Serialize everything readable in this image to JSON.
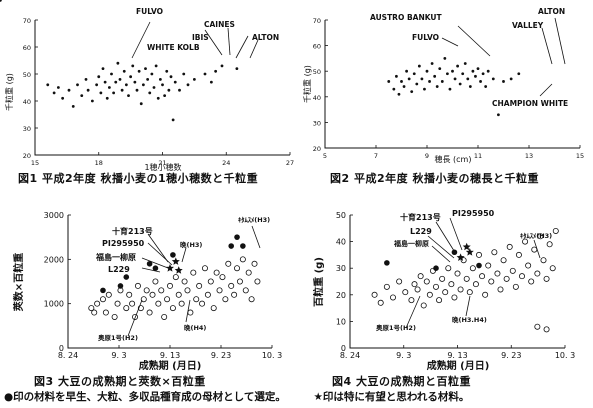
{
  "captions": {
    "fig1": "図1 平成2年度 秋播小麦の1穂小穂数と千粒重",
    "fig2": "図2 平成2年度 秋播小麦の穂長と千粒重",
    "fig3": "図3 大豆の成熟期と莢数×百粒重",
    "fig4": "図4 大豆の成熟期と百粒重",
    "footnote_part1": "●印の材料を早生、大粒、多収品種育成の母材として選定。",
    "footnote_part2": "★印は特に有望と思われる材料。"
  },
  "chart_data": [
    {
      "id": "fig1",
      "type": "scatter",
      "xlabel": "1穂小穂数",
      "ylabel": "千粒重 (g)",
      "xlim": [
        15,
        27
      ],
      "ylim": [
        20,
        70
      ],
      "xticks": [
        "15",
        "18",
        "21",
        "24",
        "27"
      ],
      "yticks": [
        "20",
        "30",
        "40",
        "50",
        "60",
        "70"
      ],
      "points": [
        [
          15.6,
          46
        ],
        [
          15.9,
          43
        ],
        [
          16.1,
          45
        ],
        [
          16.3,
          41
        ],
        [
          16.6,
          44
        ],
        [
          16.8,
          38
        ],
        [
          17,
          46
        ],
        [
          17.2,
          42
        ],
        [
          17.4,
          48
        ],
        [
          17.5,
          44
        ],
        [
          17.7,
          40
        ],
        [
          17.9,
          46
        ],
        [
          18,
          49
        ],
        [
          18.1,
          43
        ],
        [
          18.2,
          52
        ],
        [
          18.3,
          47
        ],
        [
          18.4,
          41
        ],
        [
          18.5,
          45
        ],
        [
          18.6,
          50
        ],
        [
          18.7,
          43
        ],
        [
          18.8,
          47
        ],
        [
          18.9,
          54
        ],
        [
          19,
          48
        ],
        [
          19.1,
          44
        ],
        [
          19.2,
          51
        ],
        [
          19.3,
          46
        ],
        [
          19.4,
          42
        ],
        [
          19.5,
          49
        ],
        [
          19.6,
          53
        ],
        [
          19.7,
          47
        ],
        [
          19.8,
          44
        ],
        [
          19.9,
          51
        ],
        [
          20,
          39
        ],
        [
          20.1,
          46
        ],
        [
          20.2,
          52
        ],
        [
          20.3,
          48
        ],
        [
          20.4,
          43
        ],
        [
          20.5,
          50
        ],
        [
          20.6,
          45
        ],
        [
          20.7,
          53
        ],
        [
          20.8,
          41
        ],
        [
          20.9,
          48
        ],
        [
          21,
          46
        ],
        [
          21.1,
          42
        ],
        [
          21.2,
          51
        ],
        [
          21.3,
          44
        ],
        [
          21.4,
          49
        ],
        [
          21.5,
          33
        ],
        [
          21.6,
          47
        ],
        [
          21.8,
          44
        ],
        [
          22,
          50
        ],
        [
          22.2,
          46
        ],
        [
          22.5,
          48
        ],
        [
          23,
          50
        ],
        [
          23.3,
          47
        ],
        [
          23.5,
          51
        ],
        [
          23.8,
          53
        ],
        [
          24.5,
          52
        ]
      ],
      "labeled_points": [
        {
          "label": "FULVO",
          "x": 20.1,
          "y": 61
        },
        {
          "label": "WHITE KOLB",
          "x": 22.6,
          "y": 49
        },
        {
          "label": "IBIS",
          "x": 23.7,
          "y": 55
        },
        {
          "label": "CAINES",
          "x": 24.2,
          "y": 53
        },
        {
          "label": "ALTON",
          "x": 25.2,
          "y": 53
        }
      ]
    },
    {
      "id": "fig2",
      "type": "scatter",
      "xlabel": "穂長 (cm)",
      "ylabel": "千粒重 (g)",
      "xlim": [
        5,
        15
      ],
      "ylim": [
        20,
        70
      ],
      "xticks": [
        "5",
        "7",
        "9",
        "11",
        "13",
        "15"
      ],
      "yticks": [
        "20",
        "30",
        "40",
        "50",
        "60",
        "70"
      ],
      "points": [
        [
          7.5,
          46
        ],
        [
          7.7,
          43
        ],
        [
          7.8,
          48
        ],
        [
          7.9,
          41
        ],
        [
          8,
          46
        ],
        [
          8.1,
          44
        ],
        [
          8.2,
          50
        ],
        [
          8.3,
          47
        ],
        [
          8.4,
          42
        ],
        [
          8.5,
          49
        ],
        [
          8.6,
          45
        ],
        [
          8.7,
          52
        ],
        [
          8.8,
          47
        ],
        [
          8.9,
          43
        ],
        [
          9,
          50
        ],
        [
          9.1,
          46
        ],
        [
          9.2,
          53
        ],
        [
          9.3,
          48
        ],
        [
          9.4,
          44
        ],
        [
          9.5,
          51
        ],
        [
          9.6,
          46
        ],
        [
          9.7,
          55
        ],
        [
          9.8,
          49
        ],
        [
          9.9,
          43
        ],
        [
          10,
          50
        ],
        [
          10.1,
          47
        ],
        [
          10.2,
          52
        ],
        [
          10.3,
          45
        ],
        [
          10.4,
          49
        ],
        [
          10.5,
          53
        ],
        [
          10.6,
          47
        ],
        [
          10.7,
          44
        ],
        [
          10.8,
          50
        ],
        [
          10.9,
          48
        ],
        [
          11,
          51
        ],
        [
          11.1,
          46
        ],
        [
          11.2,
          49
        ],
        [
          11.3,
          44
        ],
        [
          11.4,
          50
        ],
        [
          11.6,
          47
        ],
        [
          11.8,
          33
        ],
        [
          12,
          46
        ],
        [
          12.3,
          47
        ],
        [
          12.6,
          49
        ]
      ],
      "labeled_points": [
        {
          "label": "AUSTRO BANKUT",
          "x": 12.2,
          "y": 51
        },
        {
          "label": "FULVO",
          "x": 10.2,
          "y": 57
        },
        {
          "label": "VALLEY",
          "x": 13.9,
          "y": 49
        },
        {
          "label": "ALTON",
          "x": 14.3,
          "y": 49
        },
        {
          "label": "CHAMPION WHITE",
          "x": 13.9,
          "y": 45
        }
      ]
    },
    {
      "id": "fig3",
      "type": "scatter",
      "xlabel": "成熟期 (月日)",
      "ylabel": "莢数×百粒重",
      "xlim": [
        0,
        35
      ],
      "ylim": [
        0,
        3000
      ],
      "xticks": [
        "8. 24",
        "9. 3",
        "9. 13",
        "9. 23",
        "10. 3"
      ],
      "yticks": [
        "0",
        "1000",
        "2000",
        "3000"
      ],
      "points": [
        [
          4,
          900
        ],
        [
          4.5,
          800
        ],
        [
          5,
          1000
        ],
        [
          6,
          1100
        ],
        [
          6.5,
          800
        ],
        [
          7,
          1200
        ],
        [
          8,
          700
        ],
        [
          8.5,
          1000
        ],
        [
          9,
          1300
        ],
        [
          10,
          900
        ],
        [
          10.5,
          1200
        ],
        [
          11,
          1000
        ],
        [
          11.5,
          700
        ],
        [
          12,
          1400
        ],
        [
          12.5,
          900
        ],
        [
          13,
          1100
        ],
        [
          13.5,
          1300
        ],
        [
          14,
          800
        ],
        [
          14.5,
          1200
        ],
        [
          15,
          1500
        ],
        [
          15.5,
          1000
        ],
        [
          16,
          1300
        ],
        [
          16.5,
          700
        ],
        [
          17,
          1100
        ],
        [
          17.5,
          1400
        ],
        [
          18,
          900
        ],
        [
          18.5,
          1600
        ],
        [
          19,
          1200
        ],
        [
          19.5,
          1000
        ],
        [
          20,
          1500
        ],
        [
          20.5,
          1300
        ],
        [
          21,
          800
        ],
        [
          21.5,
          1700
        ],
        [
          22,
          1100
        ],
        [
          22.5,
          1400
        ],
        [
          23,
          1000
        ],
        [
          23.5,
          1800
        ],
        [
          24,
          1200
        ],
        [
          24.5,
          1500
        ],
        [
          25,
          900
        ],
        [
          25.5,
          1700
        ],
        [
          26,
          1300
        ],
        [
          26.5,
          1600
        ],
        [
          27,
          1100
        ],
        [
          27.5,
          1900
        ],
        [
          28,
          1400
        ],
        [
          28.5,
          1200
        ],
        [
          29,
          1800
        ],
        [
          29.5,
          1500
        ],
        [
          30,
          2000
        ],
        [
          30.5,
          1300
        ],
        [
          31,
          1700
        ],
        [
          31.5,
          1100
        ],
        [
          32,
          1900
        ],
        [
          32.5,
          1500
        ]
      ],
      "selected_points": [
        [
          6,
          1300
        ],
        [
          9,
          1400
        ],
        [
          10,
          1600
        ],
        [
          14,
          1900
        ],
        [
          15,
          1800
        ],
        [
          18,
          2100
        ],
        [
          28,
          2300
        ],
        [
          29,
          2500
        ],
        [
          30,
          2300
        ]
      ],
      "starred_points": [
        [
          17.5,
          1800
        ],
        [
          18.5,
          1950
        ],
        [
          19,
          1750
        ]
      ],
      "annotations": [
        "十育213号",
        "PI295950",
        "福島一柳原",
        "L229",
        "ｷﾀﾑｽﾒ(H3)",
        "晩(H3)",
        "奥原1号(H2)",
        "晩(H4)"
      ]
    },
    {
      "id": "fig4",
      "type": "scatter",
      "xlabel": "成熟期 (月日)",
      "ylabel": "百粒重 (g)",
      "xlim": [
        0,
        35
      ],
      "ylim": [
        0,
        50
      ],
      "xticks": [
        "8. 24",
        "9. 3",
        "9. 13",
        "9. 23",
        "10. 3"
      ],
      "yticks": [
        "0",
        "10",
        "20",
        "30",
        "40",
        "50"
      ],
      "points": [
        [
          4,
          20
        ],
        [
          5,
          17
        ],
        [
          6,
          23
        ],
        [
          7,
          19
        ],
        [
          8,
          25
        ],
        [
          9,
          21
        ],
        [
          10,
          18
        ],
        [
          10.5,
          24
        ],
        [
          11,
          22
        ],
        [
          11.5,
          27
        ],
        [
          12,
          16
        ],
        [
          12.5,
          25
        ],
        [
          13,
          20
        ],
        [
          13.5,
          29
        ],
        [
          14,
          23
        ],
        [
          14.5,
          18
        ],
        [
          15,
          26
        ],
        [
          15.5,
          21
        ],
        [
          16,
          30
        ],
        [
          16.5,
          24
        ],
        [
          17,
          19
        ],
        [
          17.5,
          28
        ],
        [
          18,
          22
        ],
        [
          18.5,
          33
        ],
        [
          19,
          26
        ],
        [
          19.5,
          21
        ],
        [
          20,
          30
        ],
        [
          20.5,
          24
        ],
        [
          21,
          35
        ],
        [
          21.5,
          27
        ],
        [
          22,
          20
        ],
        [
          22.5,
          31
        ],
        [
          23,
          25
        ],
        [
          23.5,
          36
        ],
        [
          24,
          28
        ],
        [
          24.5,
          22
        ],
        [
          25,
          33
        ],
        [
          25.5,
          26
        ],
        [
          26,
          38
        ],
        [
          26.5,
          29
        ],
        [
          27,
          23
        ],
        [
          27.5,
          35
        ],
        [
          28,
          27
        ],
        [
          28.5,
          40
        ],
        [
          29,
          31
        ],
        [
          29.5,
          25
        ],
        [
          30,
          37
        ],
        [
          30.5,
          28
        ],
        [
          31,
          42
        ],
        [
          31.5,
          33
        ],
        [
          32,
          26
        ],
        [
          32.5,
          39
        ],
        [
          33,
          30
        ],
        [
          33.5,
          44
        ],
        [
          30.5,
          8
        ],
        [
          32,
          7
        ]
      ],
      "selected_points": [
        [
          6,
          32
        ],
        [
          14,
          30
        ],
        [
          17,
          36
        ],
        [
          21,
          31
        ]
      ],
      "starred_points": [
        [
          18,
          34
        ],
        [
          19,
          38
        ],
        [
          19.5,
          36
        ]
      ],
      "annotations": [
        "十育213号",
        "PI295950",
        "L229",
        "福島一柳原",
        "ｷﾀﾑｽﾒ(H3)",
        "奥原1号(H2)",
        "晩(H3.H4)"
      ]
    }
  ]
}
